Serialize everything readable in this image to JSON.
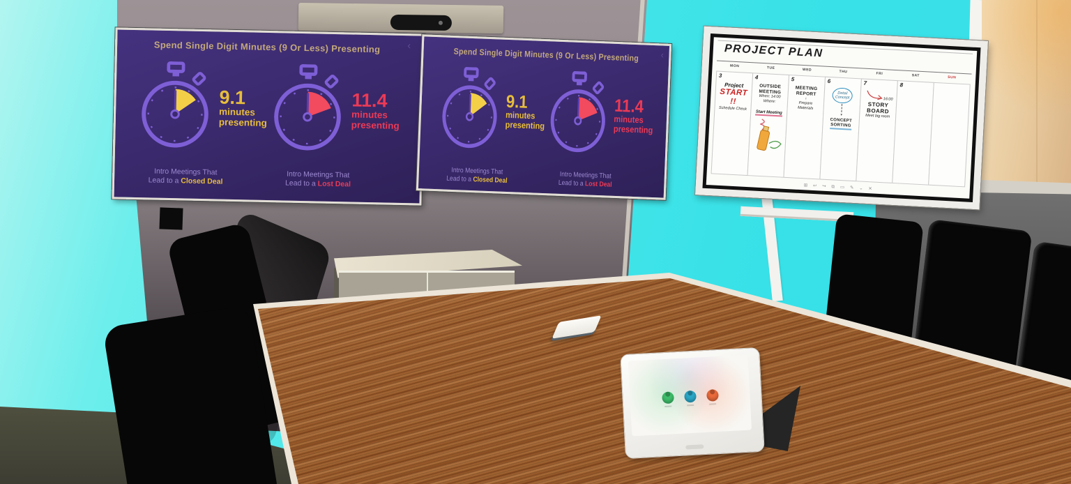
{
  "displays": {
    "title": "Spend Single Digit Minutes (9 Or Less) Presenting",
    "back_arrow": "‹",
    "stopwatches": [
      {
        "minutes": 9.1,
        "value_label": "9.1",
        "unit_line1": "minutes",
        "unit_line2": "presenting",
        "caption_line1": "Intro Meetings That",
        "caption_line2": "Lead to a",
        "highlight": "Closed Deal",
        "accent": "#e7bd3c",
        "wedge_color": "#f3cf48"
      },
      {
        "minutes": 11.4,
        "value_label": "11.4",
        "unit_line1": "minutes",
        "unit_line2": "presenting",
        "caption_line1": "Intro Meetings That",
        "caption_line2": "Lead to a",
        "highlight": "Lost Deal",
        "accent": "#ea3a56",
        "wedge_color": "#f24a5e"
      }
    ]
  },
  "whiteboard": {
    "title": "PROJECT PLAN",
    "days": [
      {
        "label": "MON",
        "date": "3"
      },
      {
        "label": "TUE",
        "date": "4"
      },
      {
        "label": "WED",
        "date": "5"
      },
      {
        "label": "THU",
        "date": "6"
      },
      {
        "label": "FRI",
        "date": "7"
      },
      {
        "label": "SAT",
        "date": "8"
      },
      {
        "label": "SUN",
        "date": ""
      }
    ],
    "monday": {
      "line1": "Project",
      "line2": "START !!",
      "line3": "Schedule Check"
    },
    "tuesday": {
      "head1": "OUTSIDE",
      "head2": "MEETING",
      "line1": "When: 14:00",
      "line2": "Where:",
      "line3": "Start Meeting"
    },
    "wednesday": {
      "head1": "MEETING",
      "head2": "REPORT",
      "arrow": "↓",
      "line1": "Prepare",
      "line2": "Materials"
    },
    "thursday": {
      "bubble1": "Detail",
      "bubble2": "Concept",
      "arrow": "▾",
      "line1": "CONCEPT",
      "line2": "SORTING"
    },
    "friday": {
      "time": "16:00",
      "head1": "STORY",
      "head2": "BOARD",
      "line1": "Meet big room"
    },
    "toolbar_icons": [
      "⊞",
      "↩",
      "↪",
      "⧉",
      "▭",
      "✎",
      "⌄",
      "✕"
    ]
  },
  "touch_panel": {
    "buttons": [
      {
        "color": "#3dbd6a"
      },
      {
        "color": "#2aa7c7"
      },
      {
        "color": "#ea6a3a"
      }
    ]
  },
  "colors": {
    "wall_cyan": "#45e6e8",
    "wall_taupe": "#95898c",
    "screen_purple": "#3b2a6e",
    "watch_purple": "#7e5fd6",
    "accent_yellow": "#e7bd3c",
    "accent_red": "#ea3a56",
    "table_wood": "#b06a33",
    "curtain_beige": "#e7c99d"
  }
}
